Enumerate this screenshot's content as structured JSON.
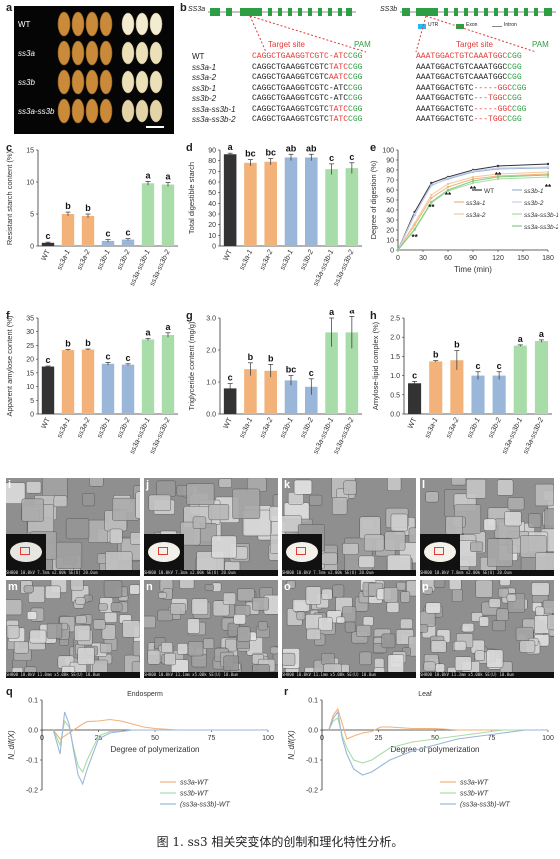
{
  "panel_letters": {
    "a": "a",
    "b": "b",
    "c": "c",
    "d": "d",
    "e": "e",
    "f": "f",
    "g": "g",
    "h": "h",
    "i": "i",
    "j": "j",
    "k": "k",
    "l": "l",
    "m": "m",
    "n": "n",
    "o": "o",
    "p": "p",
    "q": "q",
    "r": "r"
  },
  "panel_a": {
    "labels": [
      "WT",
      "ss3a",
      "ss3b",
      "ss3a-ss3b"
    ]
  },
  "panel_b": {
    "gene1": "SS3a",
    "gene2": "SS3b",
    "legend": {
      "utr": "UTR",
      "exon": "Exon",
      "intron": "Intron"
    },
    "target_site": "Target site",
    "pam": "PAM",
    "rows": [
      {
        "name": "WT",
        "t1a": "CAGGCTGAAGGTCGTC",
        "t1b": "-ATC",
        "p1": "CGG",
        "t2a": "AAATGGACTGTCAAATGGC",
        "t2b": "",
        "p2": "CGG"
      },
      {
        "name": "ss3a-1",
        "t1a": "CAGGCTGAAGGTCGTC",
        "t1b": "TATC",
        "p1": "CGG",
        "t2a": "AAATGGACTGTCAAATGGC",
        "t2b": "",
        "p2": "CGG"
      },
      {
        "name": "ss3a-2",
        "t1a": "CAGGCTGAAGGTCGTC",
        "t1b": "AATC",
        "p1": "CGG",
        "t2a": "AAATGGACTGTCAAATGGC",
        "t2b": "",
        "p2": "CGG"
      },
      {
        "name": "ss3b-1",
        "t1a": "CAGGCTGAAGGTCGTC",
        "t1b": "-ATC",
        "p1": "CGG",
        "t2a": "AAATGGACTGTC",
        "t2b": "-----GGC",
        "p2": "CGG"
      },
      {
        "name": "ss3b-2",
        "t1a": "CAGGCTGAAGGTCGTC",
        "t1b": "-ATC",
        "p1": "CGG",
        "t2a": "AAATGGACTGTC",
        "t2b": "---TGGC",
        "p2": "CGG"
      },
      {
        "name": "ss3a-ss3b-1",
        "t1a": "CAGGCTGAAGGTCGTC",
        "t1b": "TATC",
        "p1": "CGG",
        "t2a": "AAATGGACTGTC",
        "t2b": "-----GGC",
        "p2": "CGG"
      },
      {
        "name": "ss3a-ss3b-2",
        "t1a": "CAGGCTGAAGGTCGTC",
        "t1b": "TATC",
        "p1": "CGG",
        "t2a": "AAATGGACTGTC",
        "t2b": "---TGGC",
        "p2": "CGG"
      }
    ]
  },
  "colors": {
    "wt": "#333333",
    "ss3a": "#f2b27a",
    "ss3b": "#9ab7d9",
    "dbl": "#a8dca8"
  },
  "chart_data": [
    {
      "panel": "c",
      "type": "bar",
      "categories": [
        "WT",
        "ss3a-1",
        "ss3a-2",
        "ss3b-1",
        "ss3b-2",
        "ss3a-ss3b-1",
        "ss3a-ss3b-2"
      ],
      "values": [
        0.5,
        5.0,
        4.7,
        0.8,
        1.0,
        9.8,
        9.6
      ],
      "errors": [
        0.1,
        0.3,
        0.3,
        0.2,
        0.15,
        0.3,
        0.3
      ],
      "letters": [
        "c",
        "b",
        "b",
        "c",
        "c",
        "a",
        "a"
      ],
      "ylabel": "Resistant starch content (%)",
      "ylim": [
        0,
        15
      ],
      "yticks": [
        0,
        5,
        10,
        15
      ]
    },
    {
      "panel": "d",
      "type": "bar",
      "categories": [
        "WT",
        "ss3a-1",
        "ss3a-2",
        "ss3b-1",
        "ss3b-2",
        "ss3a-ss3b-1",
        "ss3a-ss3b-2"
      ],
      "values": [
        86,
        78,
        79,
        83,
        83,
        72,
        73
      ],
      "errors": [
        1,
        3,
        3,
        3,
        3,
        5,
        5
      ],
      "letters": [
        "a",
        "bc",
        "bc",
        "ab",
        "ab",
        "c",
        "c"
      ],
      "ylabel": "Total digestible starch",
      "ylim": [
        0,
        90
      ],
      "yticks": [
        0,
        10,
        20,
        30,
        40,
        50,
        60,
        70,
        80,
        90
      ]
    },
    {
      "panel": "e",
      "type": "line",
      "x": [
        0,
        20,
        40,
        60,
        90,
        120,
        180
      ],
      "series": [
        {
          "name": "WT",
          "values": [
            0,
            38,
            67,
            73,
            80,
            84,
            86
          ]
        },
        {
          "name": "ss3a-1",
          "values": [
            0,
            25,
            52,
            63,
            71,
            74,
            76
          ]
        },
        {
          "name": "ss3a-2",
          "values": [
            0,
            27,
            55,
            66,
            73,
            76,
            78
          ]
        },
        {
          "name": "ss3b-1",
          "values": [
            0,
            35,
            65,
            71,
            78,
            81,
            82
          ]
        },
        {
          "name": "ss3b-2",
          "values": [
            0,
            36,
            64,
            72,
            79,
            82,
            83
          ]
        },
        {
          "name": "ss3a-ss3b-1",
          "values": [
            0,
            20,
            47,
            59,
            67,
            71,
            73
          ]
        },
        {
          "name": "ss3a-ss3b-2",
          "values": [
            0,
            21,
            48,
            60,
            69,
            73,
            75
          ]
        }
      ],
      "markers": [
        "**",
        "**",
        "**",
        "**",
        "**",
        "**"
      ],
      "xlabel": "Time (min)",
      "ylabel": "Degree of digestion (%)",
      "xlim": [
        0,
        180
      ],
      "ylim": [
        0,
        100
      ],
      "xticks": [
        0,
        30,
        60,
        90,
        120,
        150,
        180
      ],
      "yticks": [
        0,
        10,
        20,
        30,
        40,
        50,
        60,
        70,
        80,
        90,
        100
      ]
    },
    {
      "panel": "f",
      "type": "bar",
      "categories": [
        "WT",
        "ss3a-1",
        "ss3a-2",
        "ss3b-1",
        "ss3b-2",
        "ss3a-ss3b-1",
        "ss3a-ss3b-2"
      ],
      "values": [
        17.3,
        23.3,
        23.5,
        18.3,
        18.0,
        27.2,
        28.8
      ],
      "errors": [
        0.2,
        0.2,
        0.2,
        0.5,
        0.3,
        0.4,
        0.8
      ],
      "letters": [
        "c",
        "b",
        "b",
        "c",
        "c",
        "a",
        "a"
      ],
      "ylabel": "Apparent amylose content (%)",
      "ylim": [
        0,
        35
      ],
      "yticks": [
        0,
        5,
        10,
        15,
        20,
        25,
        30,
        35
      ]
    },
    {
      "panel": "g",
      "type": "bar",
      "categories": [
        "WT",
        "ss3a-1",
        "ss3a-2",
        "ss3b-1",
        "ss3b-2",
        "ss3a-ss3b-1",
        "ss3a-ss3b-2"
      ],
      "values": [
        0.8,
        1.4,
        1.35,
        1.05,
        0.85,
        2.55,
        2.55
      ],
      "errors": [
        0.15,
        0.2,
        0.2,
        0.15,
        0.25,
        0.45,
        0.5
      ],
      "letters": [
        "c",
        "b",
        "b",
        "bc",
        "c",
        "a",
        "a"
      ],
      "ylabel": "Triglyceride content (mg/g)",
      "ylim": [
        0,
        3
      ],
      "yticks": [
        "0.0",
        "1.0",
        "2.0",
        "3.0"
      ]
    },
    {
      "panel": "h",
      "type": "bar",
      "categories": [
        "WT",
        "ss3a-1",
        "ss3a-2",
        "ss3b-1",
        "ss3b-2",
        "ss3a-ss3b-1",
        "ss3a-ss3b-2"
      ],
      "values": [
        0.8,
        1.37,
        1.4,
        1.0,
        1.0,
        1.78,
        1.9
      ],
      "errors": [
        0.05,
        0.02,
        0.25,
        0.1,
        0.1,
        0.02,
        0.03
      ],
      "letters": [
        "c",
        "b",
        "b",
        "c",
        "c",
        "a",
        "a"
      ],
      "ylabel": "Amylose-lipid complex (%)",
      "ylim": [
        0,
        2.5
      ],
      "yticks": [
        "0.0",
        "0.5",
        "1.0",
        "1.5",
        "2.0",
        "2.5"
      ]
    },
    {
      "panel": "q",
      "type": "line",
      "title": "Endosperm",
      "xlabel": "Degree of polymerization",
      "ylabel": "N_dif(X)",
      "xlim": [
        0,
        100
      ],
      "ylim": [
        -0.2,
        0.1
      ],
      "xticks": [
        0,
        25,
        50,
        75,
        100
      ],
      "yticks": [
        "0.1",
        "0.0",
        "-0.1",
        "-0.2"
      ],
      "legend": [
        "ss3a-WT",
        "ss3b-WT",
        "(ss3a-ss3b)-WT"
      ],
      "series": [
        {
          "name": "ss3a-WT",
          "x": [
            5,
            8,
            10,
            12,
            14,
            16,
            18,
            20,
            25,
            30,
            35,
            40,
            45,
            50,
            60,
            70,
            80,
            90,
            100
          ],
          "values": [
            0,
            -0.03,
            -0.02,
            -0.01,
            0.0,
            0.01,
            0.02,
            0.028,
            0.03,
            0.035,
            0.03,
            0.02,
            0.01,
            0.005,
            0,
            0,
            0,
            0,
            0
          ]
        },
        {
          "name": "ss3b-WT",
          "x": [
            5,
            8,
            10,
            12,
            14,
            16,
            18,
            20,
            25,
            30,
            35,
            40,
            50,
            60,
            80,
            100
          ],
          "values": [
            0,
            -0.05,
            0.03,
            0.01,
            -0.06,
            -0.12,
            -0.14,
            -0.1,
            -0.02,
            -0.005,
            -0.005,
            0,
            0,
            0,
            0,
            0
          ]
        },
        {
          "name": "(ss3a-ss3b)-WT",
          "x": [
            5,
            8,
            10,
            12,
            14,
            16,
            18,
            20,
            25,
            30,
            35,
            40,
            50,
            60,
            80,
            100
          ],
          "values": [
            0,
            -0.08,
            0.06,
            0.02,
            -0.07,
            -0.15,
            -0.18,
            -0.13,
            -0.03,
            -0.01,
            -0.005,
            0,
            0,
            0,
            0,
            0
          ]
        }
      ]
    },
    {
      "panel": "r",
      "type": "line",
      "title": "Leaf",
      "xlabel": "Degree of polymerization",
      "ylabel": "N_dif(X)",
      "xlim": [
        0,
        100
      ],
      "ylim": [
        -0.2,
        0.1
      ],
      "xticks": [
        0,
        25,
        50,
        75,
        100
      ],
      "yticks": [
        "0.1",
        "0.0",
        "-0.1",
        "-0.2"
      ],
      "legend": [
        "ss3a-WT",
        "ss3b-WT",
        "(ss3a-ss3b)-WT"
      ],
      "series": [
        {
          "name": "ss3a-WT",
          "x": [
            3,
            5,
            7,
            9,
            11,
            14,
            18,
            22,
            26,
            30,
            40,
            50,
            60,
            70,
            80,
            90,
            100
          ],
          "values": [
            0,
            0.05,
            0.07,
            0.02,
            -0.03,
            -0.02,
            -0.01,
            -0.005,
            0.01,
            0.01,
            0.005,
            0.005,
            0,
            0,
            0,
            0,
            0
          ]
        },
        {
          "name": "ss3b-WT",
          "x": [
            3,
            5,
            7,
            9,
            11,
            14,
            18,
            22,
            26,
            30,
            40,
            50,
            60,
            70,
            80,
            90,
            100
          ],
          "values": [
            0,
            0.03,
            0.04,
            -0.02,
            -0.06,
            -0.1,
            -0.11,
            -0.1,
            -0.08,
            -0.06,
            -0.04,
            -0.03,
            -0.02,
            -0.01,
            0,
            0,
            0
          ]
        },
        {
          "name": "(ss3a-ss3b)-WT",
          "x": [
            3,
            5,
            7,
            9,
            11,
            14,
            18,
            22,
            26,
            30,
            40,
            50,
            60,
            70,
            80,
            90,
            100
          ],
          "values": [
            0,
            0.04,
            0.06,
            -0.03,
            -0.08,
            -0.13,
            -0.15,
            -0.14,
            -0.12,
            -0.1,
            -0.07,
            -0.05,
            -0.03,
            -0.02,
            -0.01,
            0,
            0
          ]
        }
      ]
    }
  ],
  "sem": {
    "row1": [
      "SH800 10.0kV 7.7mm x2.00k SE(U)  20.0um",
      "SH800 10.0kV 7.3mm x2.00k SE(U)  20.0um",
      "SH800 10.0kV 7.7mm x2.00k SE(U)  20.0um",
      "SH800 10.0kV 7.8mm x2.00k SE(U)  20.0um"
    ],
    "row2": [
      "SH800 10.0kV 11.0mm x5.00k SE(U)  10.0um",
      "SH800 10.0kV 11.1mm x5.00k SE(U)  10.0um",
      "SH800 10.0kV 11.1mm x5.00k SE(U)  10.0um",
      "SH800 10.0kV 11.3mm x5.00k SE(U)  10.0um"
    ]
  },
  "caption": "图 1. ss3 相关突变体的创制和理化特性分析。"
}
